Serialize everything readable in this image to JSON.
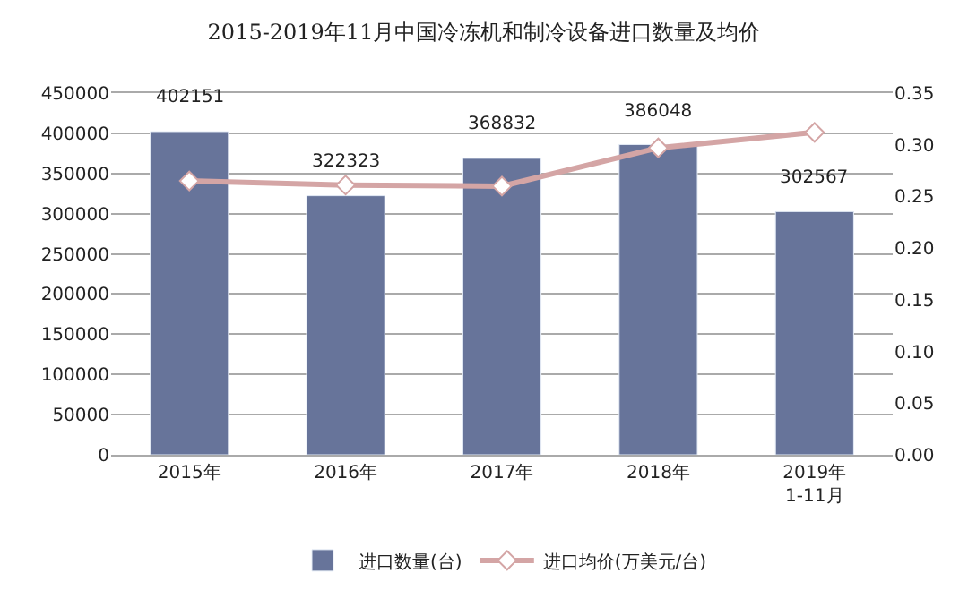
{
  "chart_data": {
    "type": "bar",
    "title": "2015-2019年11月中国冷冻机和制冷设备进口数量及均价",
    "categories": [
      "2015年",
      "2016年",
      "2017年",
      "2018年",
      "2019年\n1-11月"
    ],
    "series": [
      {
        "name": "进口数量(台)",
        "color": "#67749a",
        "values": [
          402151,
          322323,
          368832,
          386048,
          302567
        ],
        "data_labels": true
      },
      {
        "name": "进口均价(万美元/台)",
        "type": "line",
        "axis": "y2",
        "color": "#d4a5a5",
        "marker": "diamond",
        "values": [
          0.265,
          0.261,
          0.26,
          0.297,
          0.312
        ]
      }
    ],
    "ylim": [
      0,
      450000
    ],
    "yticks": [
      0,
      50000,
      100000,
      150000,
      200000,
      250000,
      300000,
      350000,
      400000,
      450000
    ],
    "y2lim": [
      0,
      0.35
    ],
    "y2ticks": [
      {
        "value": 0,
        "label": "0.00"
      },
      {
        "value": 0.05,
        "label": "0.05"
      },
      {
        "value": 0.1,
        "label": "0.10"
      },
      {
        "value": 0.15,
        "label": "0.15"
      },
      {
        "value": 0.2,
        "label": "0.20"
      },
      {
        "value": 0.25,
        "label": "0.25"
      },
      {
        "value": 0.3,
        "label": "0.30"
      },
      {
        "value": 0.35,
        "label": "0.35"
      }
    ],
    "grid": "y",
    "legend": "bottom"
  }
}
